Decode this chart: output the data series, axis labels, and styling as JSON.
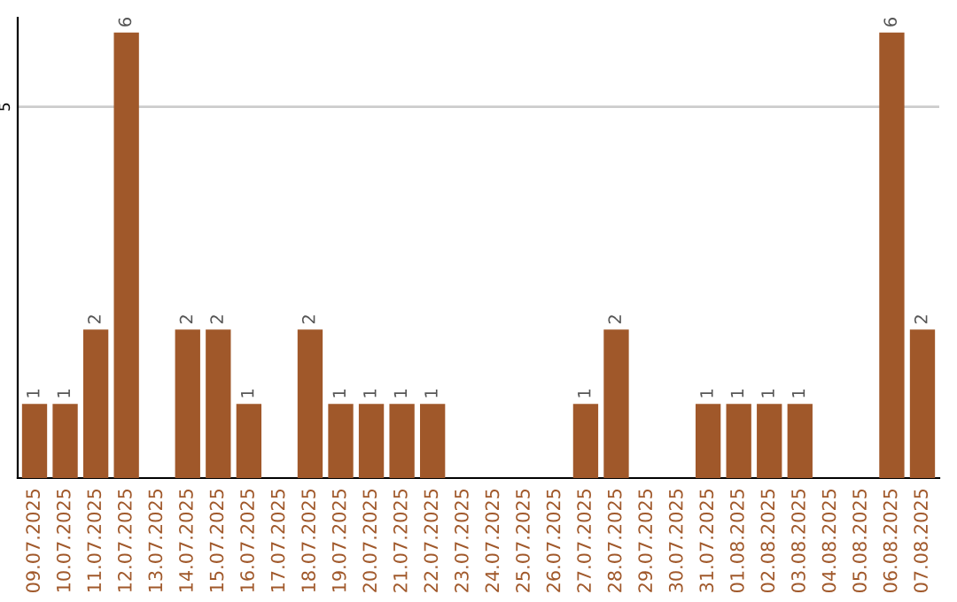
{
  "chart_data": {
    "type": "bar",
    "categories": [
      "09.07.2025",
      "10.07.2025",
      "11.07.2025",
      "12.07.2025",
      "13.07.2025",
      "14.07.2025",
      "15.07.2025",
      "16.07.2025",
      "17.07.2025",
      "18.07.2025",
      "19.07.2025",
      "20.07.2025",
      "21.07.2025",
      "22.07.2025",
      "23.07.2025",
      "24.07.2025",
      "25.07.2025",
      "26.07.2025",
      "27.07.2025",
      "28.07.2025",
      "29.07.2025",
      "30.07.2025",
      "31.07.2025",
      "01.08.2025",
      "02.08.2025",
      "03.08.2025",
      "04.08.2025",
      "05.08.2025",
      "06.08.2025",
      "07.08.2025"
    ],
    "values": [
      1,
      1,
      2,
      6,
      0,
      2,
      2,
      1,
      0,
      2,
      1,
      1,
      1,
      1,
      0,
      0,
      0,
      0,
      1,
      2,
      0,
      0,
      1,
      1,
      1,
      1,
      0,
      0,
      6,
      2
    ],
    "value_labels": [
      "1",
      "1",
      "2",
      "6",
      null,
      "2",
      "2",
      "1",
      null,
      "2",
      "1",
      "1",
      "1",
      "1",
      null,
      null,
      null,
      null,
      "1",
      "2",
      null,
      null,
      "1",
      "1",
      "1",
      "1",
      null,
      null,
      "6",
      "2"
    ],
    "color": "#a0582a",
    "ylim": [
      0,
      6.2
    ],
    "yticks": [
      5
    ],
    "grid": "y",
    "legend": false
  }
}
